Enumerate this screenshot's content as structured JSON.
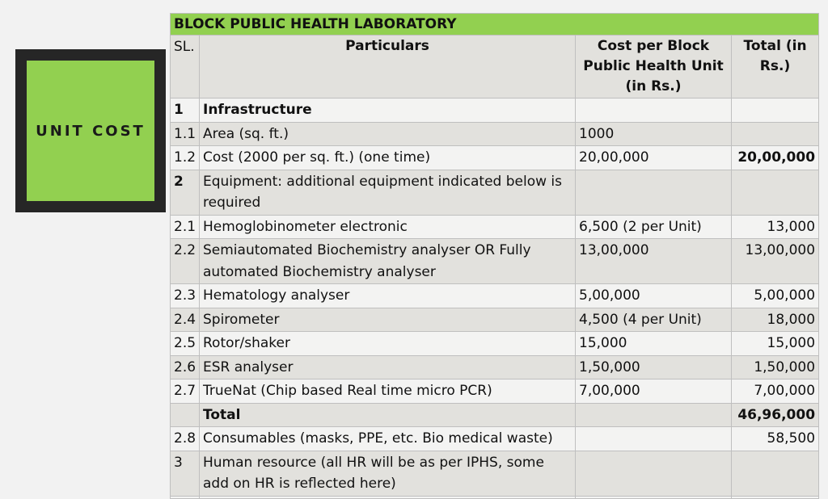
{
  "side_label": "UNIT COST",
  "table": {
    "title": "BLOCK PUBLIC HEALTH LABORATORY",
    "headers": {
      "sl": "SL.",
      "particulars": "Particulars",
      "cost_per_unit": "Cost per Block Public Health Unit (in Rs.)",
      "total": "Total (in Rs.)"
    },
    "rows": [
      {
        "sl": "1",
        "particulars": "Infrastructure",
        "cost": "",
        "total": "",
        "bold": true
      },
      {
        "sl": "1.1",
        "particulars": "Area (sq. ft.)",
        "cost": "1000",
        "total": ""
      },
      {
        "sl": "1.2",
        "particulars": "Cost (2000 per sq. ft.) (one time)",
        "cost": "20,00,000",
        "total": "20,00,000",
        "bold_total": true
      },
      {
        "sl": "2",
        "particulars": "Equipment: additional equipment indicated below is required",
        "cost": "",
        "total": "",
        "bold_sl": true
      },
      {
        "sl": "2.1",
        "particulars": "Hemoglobinometer electronic",
        "cost": "6,500 (2 per Unit)",
        "total": "13,000"
      },
      {
        "sl": "2.2",
        "particulars": "Semiautomated Biochemistry analyser OR Fully automated Biochemistry analyser",
        "cost": "13,00,000",
        "total": "13,00,000"
      },
      {
        "sl": "2.3",
        "particulars": "Hematology analyser",
        "cost": "5,00,000",
        "total": "5,00,000"
      },
      {
        "sl": "2.4",
        "particulars": "Spirometer",
        "cost": "4,500 (4 per Unit)",
        "total": "18,000"
      },
      {
        "sl": "2.5",
        "particulars": "Rotor/shaker",
        "cost": "15,000",
        "total": "15,000"
      },
      {
        "sl": "2.6",
        "particulars": "ESR analyser",
        "cost": "1,50,000",
        "total": "1,50,000"
      },
      {
        "sl": "2.7",
        "particulars": "TrueNat (Chip based Real time micro PCR)",
        "cost": "7,00,000",
        "total": "7,00,000"
      },
      {
        "sl": "",
        "particulars": "Total",
        "cost": "",
        "total": "46,96,000",
        "bold": true
      },
      {
        "sl": "2.8",
        "particulars": "Consumables (masks, PPE, etc. Bio medical waste)",
        "cost": "",
        "total": "58,500"
      },
      {
        "sl": "3",
        "particulars": "Human resource (all HR will be as per IPHS, some add on HR is reflected here)",
        "cost": "",
        "total": ""
      },
      {
        "sl": "",
        "particulars": "",
        "cost": "",
        "total": ""
      }
    ]
  }
}
